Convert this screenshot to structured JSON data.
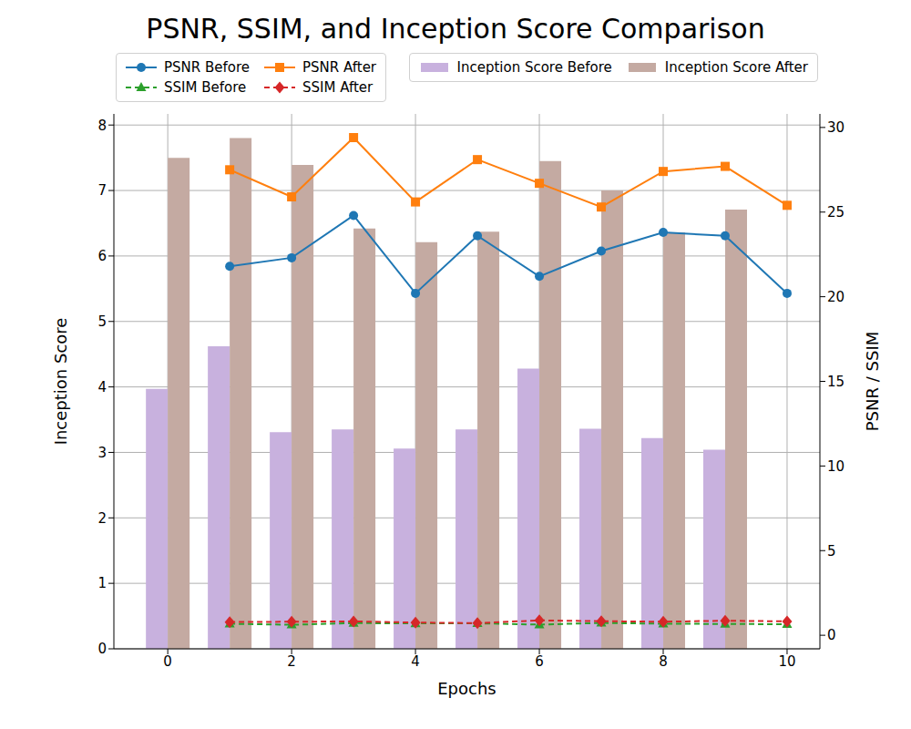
{
  "chart_data": {
    "type": "combo",
    "title": "PSNR, SSIM, and Inception Score Comparison",
    "x_label": "Epochs",
    "y_label": "Inception Score",
    "y2_label": "PSNR / SSIM",
    "x": [
      0,
      1,
      2,
      3,
      4,
      5,
      6,
      7,
      8,
      9,
      10
    ],
    "xlim": [
      -0.87,
      10.53
    ],
    "xticks": [
      0,
      2,
      4,
      6,
      8,
      10
    ],
    "ylim": [
      0,
      8.17
    ],
    "yticks": [
      0,
      1,
      2,
      3,
      4,
      5,
      6,
      7,
      8
    ],
    "y2lim": [
      -0.8,
      30.8
    ],
    "y2ticks": [
      0,
      5,
      10,
      15,
      20,
      25,
      30
    ],
    "grid": true,
    "legend": "top",
    "series": [
      {
        "name": "PSNR Before",
        "type": "line",
        "axis": "y2",
        "color": "#1f77b4",
        "marker": "circle",
        "line_style": "solid",
        "values": [
          null,
          21.8,
          22.3,
          24.8,
          20.2,
          23.6,
          21.2,
          22.7,
          23.8,
          23.6,
          20.2
        ]
      },
      {
        "name": "PSNR After",
        "type": "line",
        "axis": "y2",
        "color": "#ff7f0e",
        "marker": "square",
        "line_style": "solid",
        "values": [
          null,
          27.5,
          25.9,
          29.4,
          25.6,
          28.1,
          26.7,
          25.3,
          27.4,
          27.7,
          25.4
        ]
      },
      {
        "name": "SSIM Before",
        "type": "line",
        "axis": "y2",
        "color": "#2ca02c",
        "marker": "triangle",
        "line_style": "dashed",
        "values": [
          null,
          0.68,
          0.62,
          0.72,
          0.7,
          0.71,
          0.63,
          0.73,
          0.68,
          0.67,
          0.65
        ]
      },
      {
        "name": "SSIM After",
        "type": "line",
        "axis": "y2",
        "color": "#d62728",
        "marker": "diamond",
        "line_style": "dashed",
        "values": [
          null,
          0.78,
          0.8,
          0.82,
          0.75,
          0.72,
          0.88,
          0.83,
          0.8,
          0.86,
          0.82
        ]
      },
      {
        "name": "Inception Score Before",
        "type": "bar",
        "axis": "y",
        "color": "#c8b1de",
        "values": [
          3.97,
          4.62,
          3.31,
          3.35,
          3.06,
          3.35,
          4.28,
          3.36,
          3.22,
          3.04,
          null
        ]
      },
      {
        "name": "Inception Score After",
        "type": "bar",
        "axis": "y",
        "color": "#c4aaa2",
        "values": [
          7.5,
          7.8,
          7.39,
          6.42,
          6.21,
          6.37,
          7.45,
          7.0,
          6.36,
          6.71,
          null
        ]
      }
    ]
  }
}
